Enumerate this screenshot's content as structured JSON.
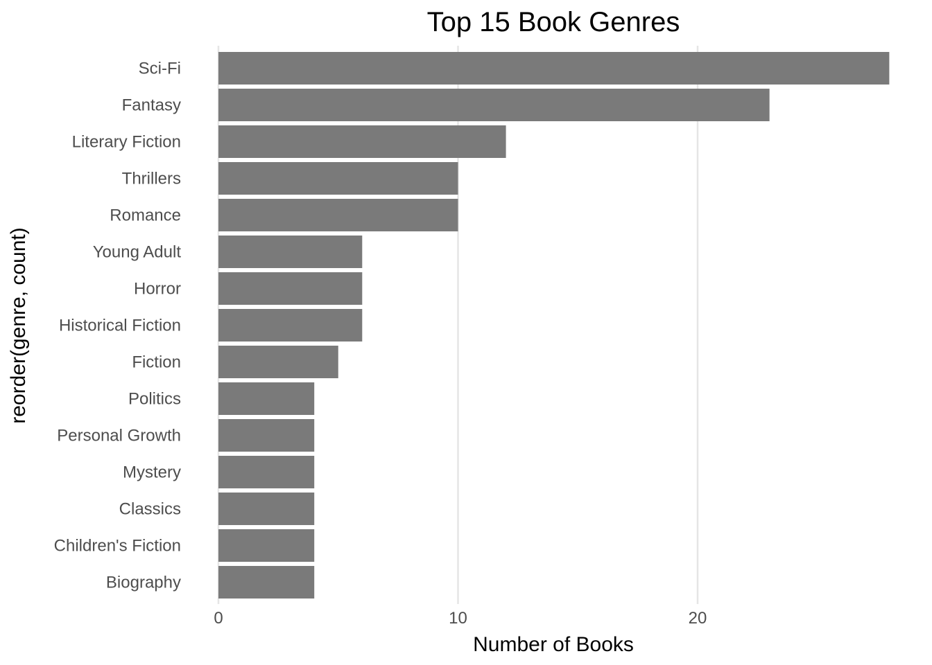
{
  "chart_data": {
    "type": "bar",
    "orientation": "horizontal",
    "title": "Top 15 Book Genres",
    "xlabel": "Number of Books",
    "ylabel": "reorder(genre, count)",
    "categories": [
      "Sci-Fi",
      "Fantasy",
      "Literary Fiction",
      "Thrillers",
      "Romance",
      "Young Adult",
      "Horror",
      "Historical Fiction",
      "Fiction",
      "Politics",
      "Personal Growth",
      "Mystery",
      "Classics",
      "Children's Fiction",
      "Biography"
    ],
    "values": [
      28,
      23,
      12,
      10,
      10,
      6,
      6,
      6,
      5,
      4,
      4,
      4,
      4,
      4,
      4
    ],
    "xlim": [
      0,
      28
    ],
    "xticks": [
      "0",
      "10",
      "20"
    ],
    "xtick_values": [
      0,
      10,
      20
    ],
    "grid": true,
    "legend": "none",
    "bar_color": "#7a7a7a"
  }
}
